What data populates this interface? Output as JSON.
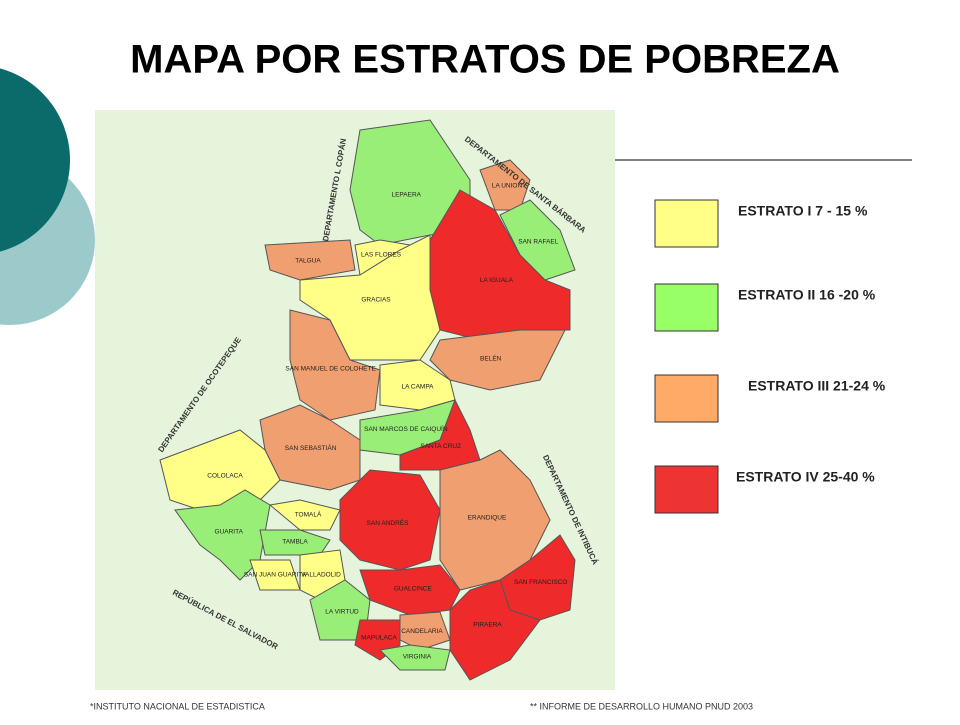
{
  "title": "MAPA POR ESTRATOS DE POBREZA",
  "map": {
    "background": "#e6f4dc",
    "borders": [
      "DEPARTAMENTO L COPÁN",
      "DEPARTAMENTO DE SANTA BÁRBARA",
      "DEPARTAMENTO DE OCOTEPEQUE",
      "DEPARTAMENTO DE INTIBUCÁ",
      "REPÚBLICA DE EL SALVADOR"
    ],
    "regions": [
      {
        "label": "LEPAERA",
        "color": "#99ee77"
      },
      {
        "label": "LA UNION",
        "color": "#f0a070"
      },
      {
        "label": "SAN RAFAEL",
        "color": "#99ee77"
      },
      {
        "label": "LA IGUALA",
        "color": "#ee2a2a"
      },
      {
        "label": "TALGUA",
        "color": "#f0a070"
      },
      {
        "label": "LAS FLORES",
        "color": "#ffff88"
      },
      {
        "label": "GRACIAS",
        "color": "#ffff88"
      },
      {
        "label": "BELÉN",
        "color": "#f0a070"
      },
      {
        "label": "SAN MANUEL DE COLOHETE",
        "color": "#f0a070"
      },
      {
        "label": "LA CAMPA",
        "color": "#ffff88"
      },
      {
        "label": "SAN SEBASTIÁN",
        "color": "#f0a070"
      },
      {
        "label": "SAN MARCOS DE CAIQUÍN",
        "color": "#99ee77"
      },
      {
        "label": "SANTA CRUZ",
        "color": "#ee2a2a"
      },
      {
        "label": "COLOLACA",
        "color": "#ffff88"
      },
      {
        "label": "GUARITA",
        "color": "#99ee77"
      },
      {
        "label": "TOMALÁ",
        "color": "#ffff88"
      },
      {
        "label": "TAMBLA",
        "color": "#99ee77"
      },
      {
        "label": "SAN JUAN GUARITA",
        "color": "#ffff88"
      },
      {
        "label": "VALLADOLID",
        "color": "#ffff88"
      },
      {
        "label": "SAN ANDRÉS",
        "color": "#ee2a2a"
      },
      {
        "label": "ERANDIQUE",
        "color": "#f0a070"
      },
      {
        "label": "GUALCINCE",
        "color": "#ee2a2a"
      },
      {
        "label": "SAN FRANCISCO",
        "color": "#ee2a2a"
      },
      {
        "label": "LA VIRTUD",
        "color": "#99ee77"
      },
      {
        "label": "CANDELARIA",
        "color": "#f0a070"
      },
      {
        "label": "PIRAERA",
        "color": "#ee2a2a"
      },
      {
        "label": "MAPULACA",
        "color": "#ee2a2a"
      },
      {
        "label": "VIRGINIA",
        "color": "#99ee77"
      }
    ]
  },
  "legend": [
    {
      "label": "ESTRATO I  7 - 15 %",
      "color": "#ffff88"
    },
    {
      "label": "ESTRATO II 16 -20 %",
      "color": "#99ff66"
    },
    {
      "label": "ESTRATO III 21-24  %",
      "color": "#ffaa66"
    },
    {
      "label": "ESTRATO IV 25-40 %",
      "color": "#ee3333"
    }
  ],
  "footnotes": [
    "*INSTITUTO NACIONAL DE ESTADISTICA",
    "** INFORME DE DESARROLLO HUMANO  PNUD 2003"
  ]
}
